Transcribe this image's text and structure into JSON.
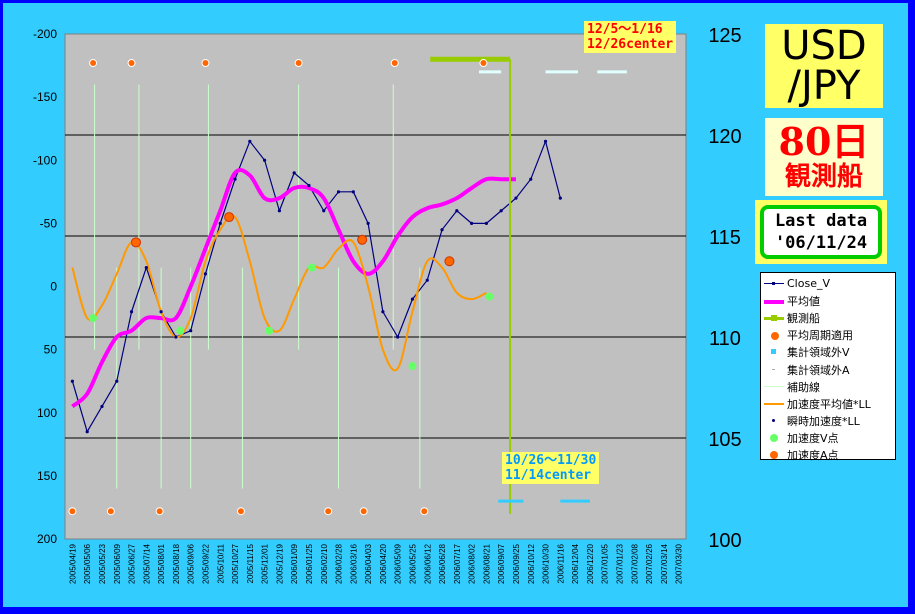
{
  "title_box": {
    "line1": "USD",
    "line2": "/JPY"
  },
  "sub_box": {
    "line1": "80日",
    "line2": "観測船"
  },
  "last_box": {
    "line1": "Last data",
    "line2": "'06/11/24"
  },
  "annotations": {
    "top": {
      "line1": "12/5～1/16",
      "line2": "12/26center"
    },
    "bottom": {
      "line1": "10/26～11/30",
      "line2": "11/14center"
    }
  },
  "colors": {
    "background": "#0000ff",
    "frame": "#33ccff",
    "plot": "#c0c0c0",
    "close": "#000080",
    "average": "#ff00ff",
    "accel_avg": "#ff9900",
    "guide": "#ccffcc",
    "observer": "#99cc00",
    "v_point": "#66ff66",
    "a_point": "#ff6600"
  },
  "chart_data": {
    "type": "line",
    "y_left": {
      "min": -200,
      "max": 200,
      "ticks": [
        "-200",
        "-150",
        "-100",
        "-50",
        "0",
        "50",
        "100",
        "150",
        "200"
      ],
      "reversed": true
    },
    "y_right": {
      "min": 100,
      "max": 125,
      "ticks": [
        "125",
        "120",
        "115",
        "110",
        "105",
        "100"
      ]
    },
    "grid_lines_left": [
      -120,
      -40,
      40,
      120
    ],
    "x_labels": [
      "2005/04/19",
      "2005/05/06",
      "2005/05/23",
      "2005/06/09",
      "2005/06/27",
      "2005/07/14",
      "2005/08/01",
      "2005/08/18",
      "2005/09/06",
      "2005/09/22",
      "2005/10/11",
      "2005/10/27",
      "2005/11/15",
      "2005/12/01",
      "2005/12/19",
      "2006/01/09",
      "2006/01/25",
      "2006/02/10",
      "2006/02/28",
      "2006/03/16",
      "2006/04/03",
      "2006/04/20",
      "2006/05/09",
      "2006/05/25",
      "2006/06/12",
      "2006/06/28",
      "2006/07/17",
      "2006/08/02",
      "2006/08/21",
      "2006/09/07",
      "2006/09/25",
      "2006/10/12",
      "2006/10/30",
      "2006/11/16",
      "2006/12/04",
      "2006/12/20",
      "2007/01/05",
      "2007/01/23",
      "2007/02/08",
      "2007/02/26",
      "2007/03/14",
      "2007/03/30"
    ],
    "series": [
      {
        "name": "Close_V",
        "x_index": [
          0,
          1,
          2,
          3,
          4,
          5,
          6,
          7,
          8,
          9,
          10,
          11,
          12,
          13,
          14,
          15,
          16,
          17,
          18,
          19,
          20,
          21,
          22,
          23,
          24,
          25,
          26,
          27,
          28,
          29,
          30,
          31,
          32,
          33
        ],
        "values": [
          75,
          115,
          95,
          75,
          20,
          -15,
          20,
          40,
          35,
          -10,
          -50,
          -85,
          -115,
          -100,
          -60,
          -90,
          -80,
          -60,
          -75,
          -75,
          -50,
          20,
          40,
          10,
          -5,
          -45,
          -60,
          -50,
          -50,
          -60,
          -70,
          -85,
          -115,
          -70
        ]
      },
      {
        "name": "平均値",
        "x_index": [
          0,
          1,
          2,
          3,
          4,
          5,
          6,
          7,
          8,
          9,
          10,
          11,
          12,
          13,
          14,
          15,
          16,
          17,
          18,
          19,
          20,
          21,
          22,
          23,
          24,
          25,
          26,
          27,
          28,
          29,
          30
        ],
        "values": [
          95,
          85,
          60,
          40,
          35,
          25,
          25,
          25,
          0,
          -30,
          -60,
          -90,
          -88,
          -70,
          -70,
          -78,
          -78,
          -70,
          -45,
          -20,
          -10,
          -20,
          -40,
          -55,
          -62,
          -65,
          -70,
          -78,
          -85,
          -85,
          -85
        ]
      },
      {
        "name": "加速度平均値*LL",
        "x_index": [
          0,
          1,
          2,
          3,
          4,
          5,
          6,
          7,
          8,
          9,
          10,
          11,
          12,
          13,
          14,
          15,
          16,
          17,
          18,
          19,
          20,
          21,
          22,
          23,
          24,
          25,
          26,
          27,
          28
        ],
        "values": [
          -15,
          25,
          15,
          -10,
          -35,
          -20,
          20,
          40,
          25,
          -20,
          -45,
          -55,
          -20,
          25,
          35,
          10,
          -15,
          -15,
          -30,
          -35,
          0,
          50,
          65,
          20,
          -20,
          -15,
          5,
          10,
          5
        ]
      },
      {
        "name": "観測船",
        "x_index": [
          24.2,
          29.6
        ],
        "values": [
          -180,
          -180
        ]
      }
    ],
    "v_points": [
      {
        "x": 1.4,
        "y": 25
      },
      {
        "x": 7.3,
        "y": 35
      },
      {
        "x": 13.3,
        "y": 35
      },
      {
        "x": 16.2,
        "y": -15
      },
      {
        "x": 23.0,
        "y": 63
      },
      {
        "x": 28.2,
        "y": 8
      }
    ],
    "a_points": [
      {
        "x": 4.3,
        "y": -35
      },
      {
        "x": 10.6,
        "y": -55
      },
      {
        "x": 19.6,
        "y": -37
      },
      {
        "x": 25.5,
        "y": -20
      }
    ],
    "period_markers_top": [
      1.4,
      4.0,
      9.0,
      15.3,
      21.8,
      27.8
    ],
    "period_markers_bottom": [
      0,
      2.6,
      5.9,
      11.4,
      17.3,
      19.7,
      23.8
    ],
    "guide_lines": [
      1.5,
      4.5,
      9.2,
      15.3,
      21.7
    ],
    "guide_lines_bottom": [
      3.0,
      6.0,
      8.0,
      11.5,
      18.0,
      23.5
    ],
    "legend": [
      "Close_V",
      "平均値",
      "観測船",
      "平均周期適用",
      "集計領域外V",
      "集計領域外A",
      "補助線",
      "加速度平均値*LL",
      "瞬時加速度*LL",
      "加速度V点",
      "加速度A点"
    ]
  }
}
